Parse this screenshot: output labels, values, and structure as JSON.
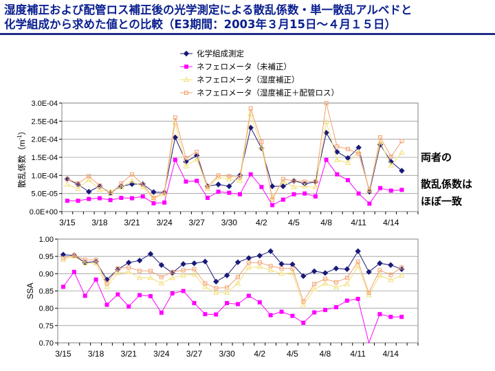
{
  "title_line1": "湿度補正および配管ロス補正後の光学測定による散乱係数・単一散乱アルベドと",
  "title_line2": "化学組成から求めた値との比較（E3期間：2003年３月15日～４月１５日）",
  "annotation": [
    "両者の",
    "散乱係数は",
    "ほぼ一致"
  ],
  "colors": {
    "title": "#0a1f8f",
    "chem": "#1a1a7a",
    "raw": "#ff00ff",
    "hum": "#f2e07a",
    "loss": "#f2a070"
  },
  "chart_data": [
    {
      "type": "line",
      "ylabel_main": "散乱係数（m",
      "ylabel_sup": "-1",
      "ylabel_end": "）",
      "ylim": [
        0,
        0.0003
      ],
      "yticks": [
        "0.0E+00",
        "5.0E-05",
        "1.0E-04",
        "1.5E-04",
        "2.0E-04",
        "2.5E-04",
        "3.0E-04"
      ],
      "x_count": 33,
      "xticks": [
        {
          "label": "3/15",
          "i": 0
        },
        {
          "label": "3/18",
          "i": 3
        },
        {
          "label": "3/21",
          "i": 6
        },
        {
          "label": "3/24",
          "i": 9
        },
        {
          "label": "3/27",
          "i": 12
        },
        {
          "label": "3/30",
          "i": 15
        },
        {
          "label": "4/2",
          "i": 18
        },
        {
          "label": "4/5",
          "i": 21
        },
        {
          "label": "4/8",
          "i": 24
        },
        {
          "label": "4/11",
          "i": 27
        },
        {
          "label": "4/14",
          "i": 30
        }
      ],
      "legend": [
        "化学組成測定",
        "ネフェロメータ（未補正）",
        "ネフェロメータ（湿度補正）",
        "ネフェロメータ（湿度補正＋配管ロス）"
      ],
      "series": [
        {
          "name": "化学組成測定",
          "values": [
            9e-05,
            7.5e-05,
            5.5e-05,
            7e-05,
            5.2e-05,
            7e-05,
            7.6e-05,
            7.6e-05,
            5.4e-05,
            5.3e-05,
            0.000205,
            0.000138,
            0.000155,
            7e-05,
            7.5e-05,
            7e-05,
            0.0001,
            0.000232,
            0.000175,
            7e-05,
            7e-05,
            8.5e-05,
            7.7e-05,
            8.2e-05,
            0.000218,
            0.000165,
            0.000148,
            0.000177,
            5.5e-05,
            0.000185,
            0.000138,
            0.000113,
            null
          ]
        },
        {
          "name": "ネフェロメータ（未補正）",
          "values": [
            3e-05,
            3e-05,
            3.5e-05,
            3.7e-05,
            3.2e-05,
            3.8e-05,
            3.7e-05,
            4.2e-05,
            2.3e-05,
            2.5e-05,
            0.000143,
            8.3e-05,
            8.5e-05,
            3.8e-05,
            5.5e-05,
            5.2e-05,
            4.8e-05,
            0.000103,
            6.8e-05,
            1.8e-05,
            3.3e-05,
            4.8e-05,
            5e-05,
            4.2e-05,
            0.000143,
            0.000103,
            8.7e-05,
            5e-05,
            2.2e-05,
            6.5e-05,
            5.8e-05,
            6e-05,
            null
          ]
        },
        {
          "name": "ネフェロメータ（湿度補正）",
          "values": [
            7.5e-05,
            6.3e-05,
            8.8e-05,
            6e-05,
            5.5e-05,
            6.7e-05,
            8.5e-05,
            6.8e-05,
            3.5e-05,
            4.8e-05,
            0.000245,
            0.000125,
            0.000145,
            6.3e-05,
            9.5e-05,
            9e-05,
            8.5e-05,
            0.00027,
            0.000178,
            4e-05,
            8.3e-05,
            6.8e-05,
            7e-05,
            6.8e-05,
            0.000248,
            0.000143,
            0.000135,
            0.000165,
            6e-05,
            0.000192,
            0.000128,
            0.000163,
            null
          ]
        },
        {
          "name": "ネフェロメータ（湿度補正＋配管ロス）",
          "values": [
            9e-05,
            7.8e-05,
            9.8e-05,
            7.2e-05,
            5e-05,
            7.8e-05,
            0.000103,
            7.5e-05,
            3.8e-05,
            5.3e-05,
            0.00026,
            0.000148,
            0.000165,
            6.8e-05,
            0.0001,
            9.8e-05,
            9.5e-05,
            0.000285,
            0.000193,
            3.3e-05,
            9e-05,
            8.5e-05,
            8.3e-05,
            8.3e-05,
            0.0003,
            0.00018,
            0.000173,
            0.00016,
            5.8e-05,
            0.000205,
            0.000152,
            0.000195,
            null
          ]
        }
      ]
    },
    {
      "type": "line",
      "ylabel": "SSA",
      "ylim": [
        0.7,
        1.0
      ],
      "yticks": [
        "0.70",
        "0.75",
        "0.80",
        "0.85",
        "0.90",
        "0.95",
        "1.00"
      ],
      "x_count": 33,
      "xticks": [
        {
          "label": "3/15",
          "i": 0
        },
        {
          "label": "3/18",
          "i": 3
        },
        {
          "label": "3/21",
          "i": 6
        },
        {
          "label": "3/24",
          "i": 9
        },
        {
          "label": "3/27",
          "i": 12
        },
        {
          "label": "3/30",
          "i": 15
        },
        {
          "label": "4/2",
          "i": 18
        },
        {
          "label": "4/5",
          "i": 21
        },
        {
          "label": "4/8",
          "i": 24
        },
        {
          "label": "4/11",
          "i": 27
        },
        {
          "label": "4/14",
          "i": 30
        }
      ],
      "series": [
        {
          "name": "化学組成測定",
          "values": [
            0.955,
            0.953,
            0.932,
            0.935,
            0.883,
            0.912,
            0.932,
            0.938,
            0.957,
            0.925,
            0.902,
            0.928,
            0.93,
            0.935,
            0.877,
            0.895,
            0.933,
            0.945,
            0.952,
            0.965,
            0.928,
            0.927,
            0.893,
            0.907,
            0.902,
            0.915,
            0.913,
            0.965,
            0.905,
            0.93,
            0.925,
            0.913,
            null
          ]
        },
        {
          "name": "ネフェロメータ（未補正）",
          "values": [
            0.862,
            0.905,
            0.836,
            0.883,
            0.81,
            0.84,
            0.805,
            0.838,
            0.835,
            0.787,
            0.843,
            0.85,
            0.815,
            0.783,
            0.782,
            0.815,
            0.812,
            0.836,
            0.817,
            0.78,
            0.79,
            0.778,
            0.758,
            0.788,
            0.795,
            0.803,
            0.822,
            0.827,
            0.695,
            0.783,
            0.775,
            0.775,
            null
          ]
        },
        {
          "name": "ネフェロメータ（湿度補正）",
          "values": [
            0.94,
            0.95,
            0.93,
            0.93,
            0.862,
            0.902,
            0.905,
            0.888,
            0.888,
            0.872,
            0.888,
            0.895,
            0.898,
            0.862,
            0.845,
            0.845,
            0.872,
            0.918,
            0.92,
            0.91,
            0.9,
            0.902,
            0.81,
            0.855,
            0.872,
            0.86,
            0.87,
            0.922,
            0.838,
            0.895,
            0.882,
            0.895,
            null
          ]
        },
        {
          "name": "ネフェロメータ（湿度補正＋配管ロス）",
          "values": [
            0.945,
            0.953,
            0.94,
            0.94,
            0.872,
            0.915,
            0.918,
            0.908,
            0.908,
            0.89,
            0.905,
            0.91,
            0.913,
            0.872,
            0.858,
            0.86,
            0.89,
            0.932,
            0.932,
            0.922,
            0.915,
            0.915,
            0.82,
            0.87,
            0.885,
            0.875,
            0.888,
            0.935,
            0.845,
            0.91,
            0.897,
            0.918,
            null
          ]
        }
      ]
    }
  ]
}
